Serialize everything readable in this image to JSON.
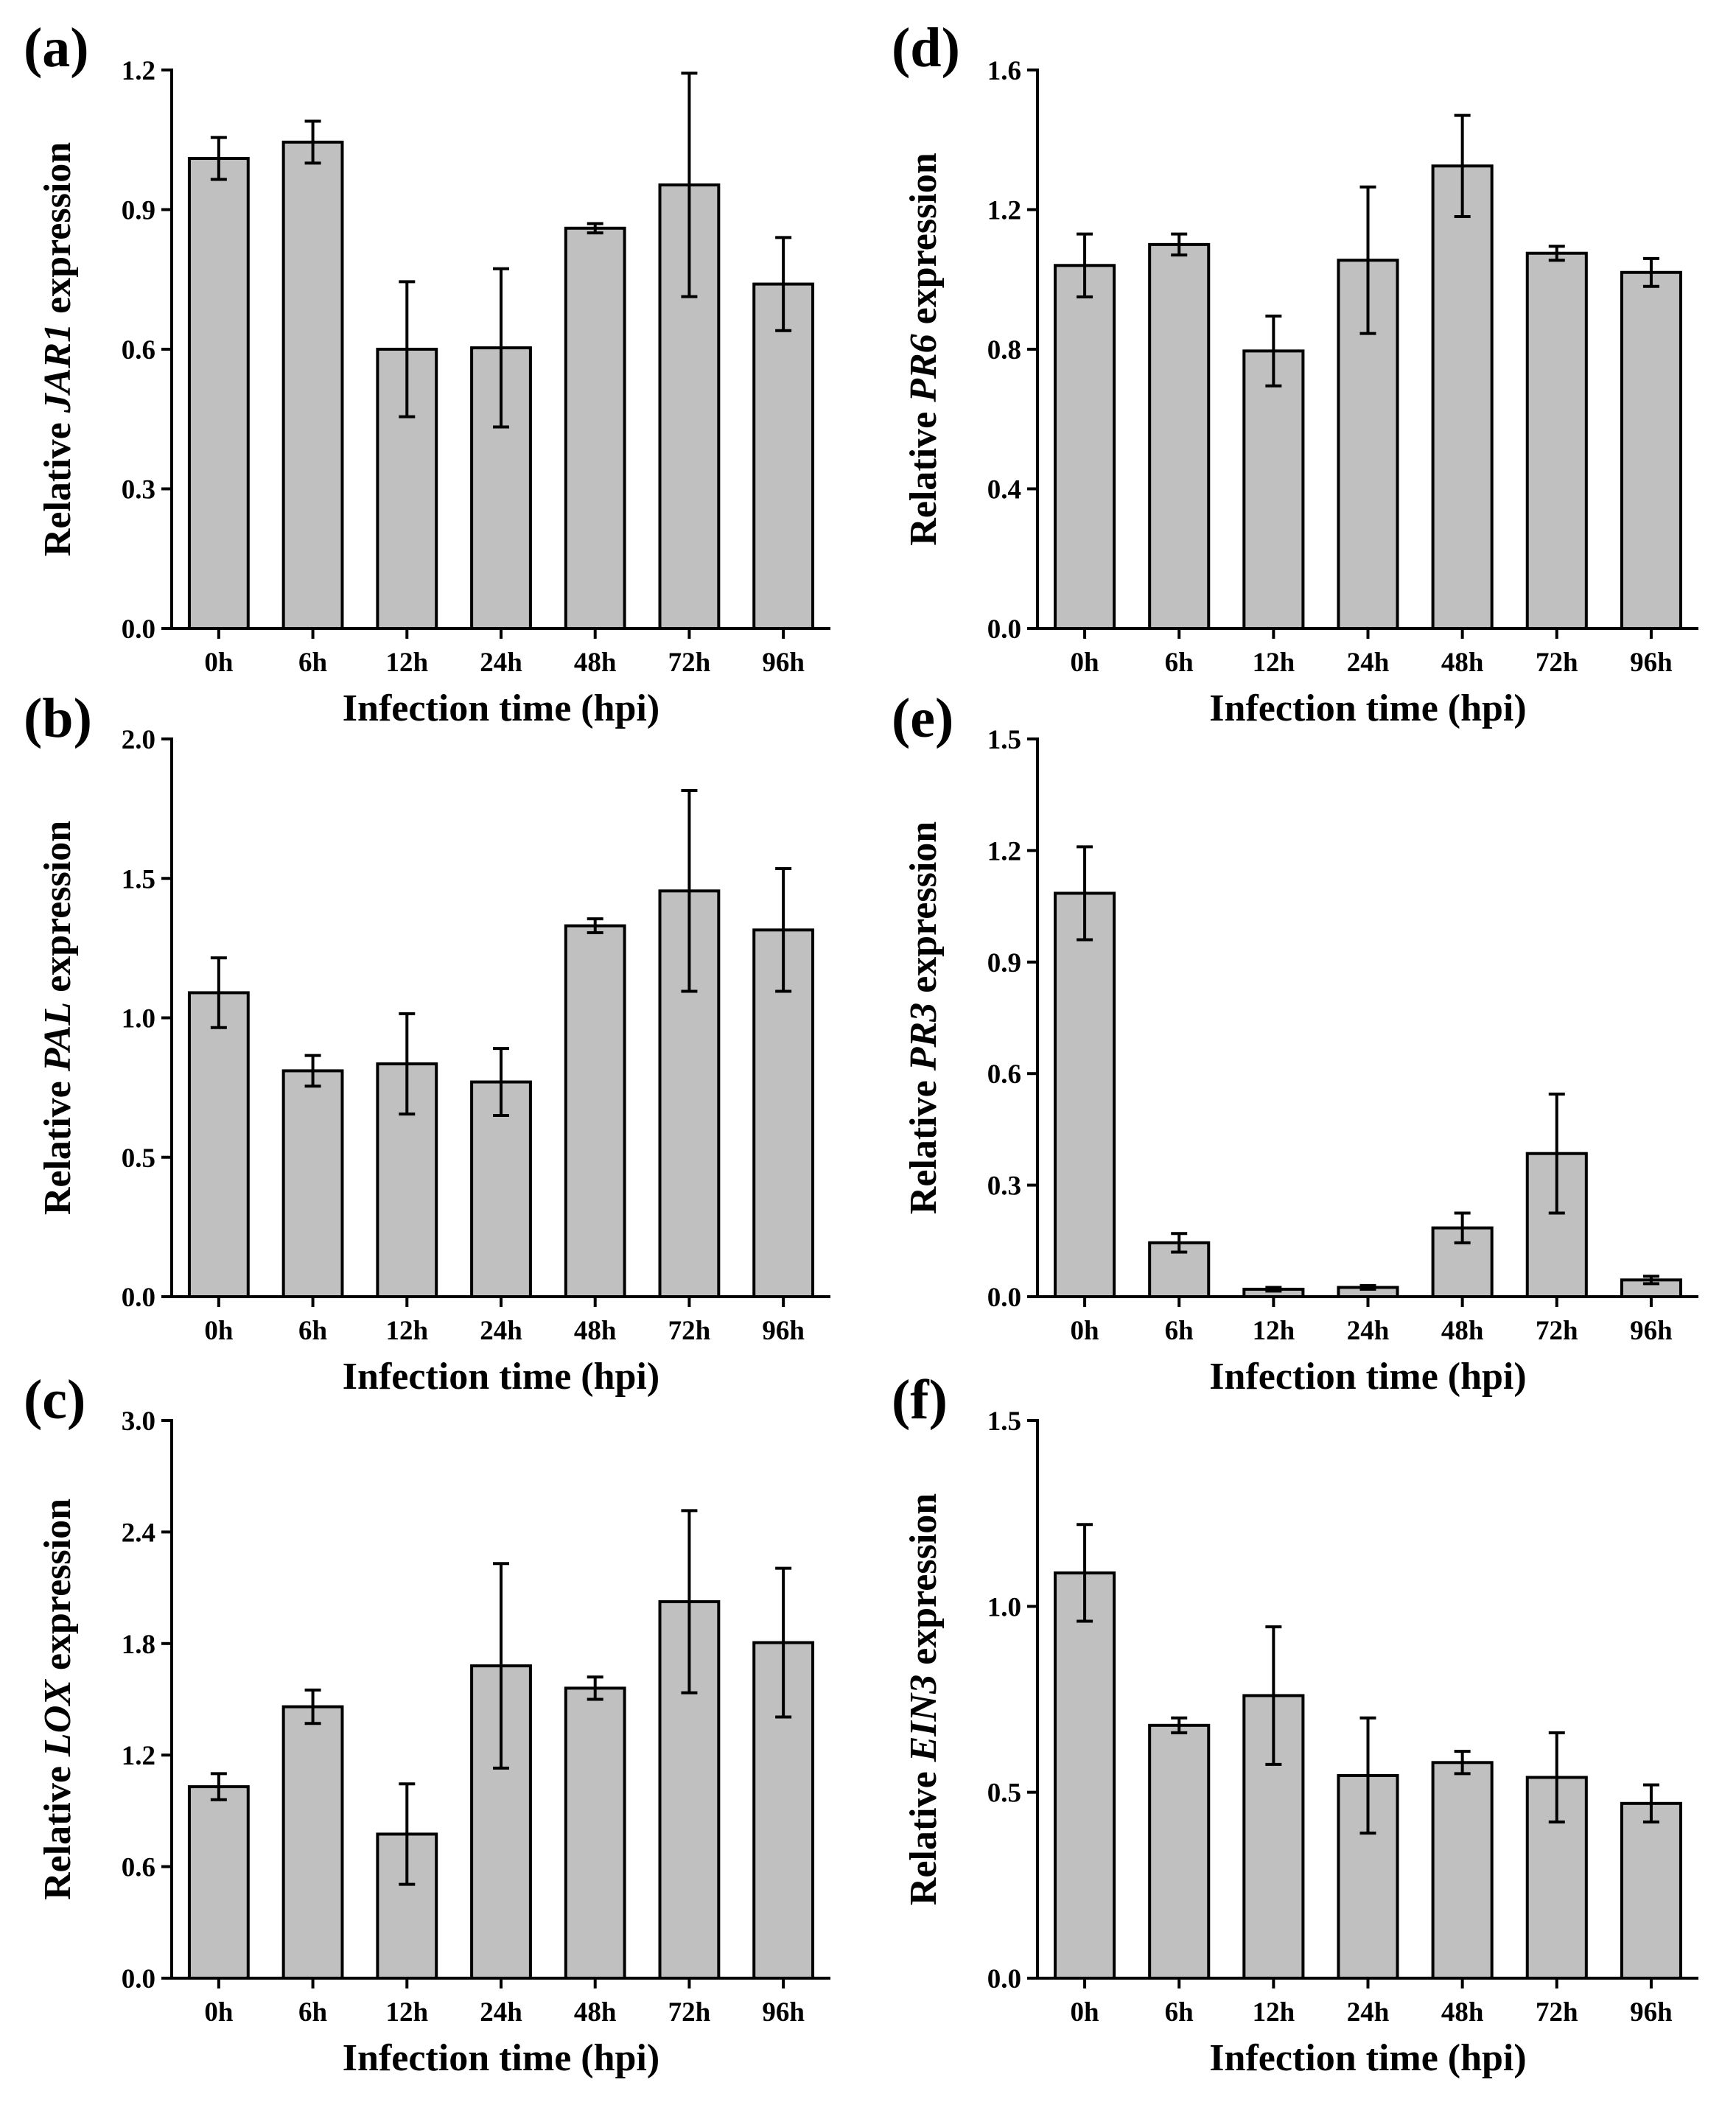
{
  "colors": {
    "bar_fill": "#c0c0c0",
    "stroke": "#000000",
    "background": "#ffffff"
  },
  "chart_data": [
    {
      "panel": "(a)",
      "type": "bar",
      "categories": [
        "0h",
        "6h",
        "12h",
        "24h",
        "48h",
        "72h",
        "96h"
      ],
      "values": [
        1.01,
        1.045,
        0.6,
        0.603,
        0.86,
        0.953,
        0.74
      ],
      "errors": [
        0.045,
        0.045,
        0.145,
        0.17,
        0.01,
        0.24,
        0.1
      ],
      "ylim": [
        0,
        1.2
      ],
      "yticks": [
        "0.0",
        "0.3",
        "0.6",
        "0.9",
        "1.2"
      ],
      "xlabel": "Infection time (hpi)",
      "ylabel": {
        "prefix": "Relative ",
        "gene": "JAR1",
        "suffix": " expression"
      }
    },
    {
      "panel": "(b)",
      "type": "bar",
      "categories": [
        "0h",
        "6h",
        "12h",
        "24h",
        "48h",
        "72h",
        "96h"
      ],
      "values": [
        1.09,
        0.81,
        0.835,
        0.77,
        1.33,
        1.455,
        1.315
      ],
      "errors": [
        0.125,
        0.055,
        0.18,
        0.12,
        0.025,
        0.36,
        0.22
      ],
      "ylim": [
        0,
        2.0
      ],
      "yticks": [
        "0.0",
        "0.5",
        "1.0",
        "1.5",
        "2.0"
      ],
      "xlabel": "Infection time (hpi)",
      "ylabel": {
        "prefix": "Relative ",
        "gene": "PAL",
        "suffix": " expression"
      }
    },
    {
      "panel": "(c)",
      "type": "bar",
      "categories": [
        "0h",
        "6h",
        "12h",
        "24h",
        "48h",
        "72h",
        "96h"
      ],
      "values": [
        1.03,
        1.46,
        0.775,
        1.68,
        1.56,
        2.025,
        1.805
      ],
      "errors": [
        0.07,
        0.09,
        0.27,
        0.55,
        0.06,
        0.49,
        0.4
      ],
      "ylim": [
        0,
        3.0
      ],
      "yticks": [
        "0.0",
        "0.6",
        "1.2",
        "1.8",
        "2.4",
        "3.0"
      ],
      "xlabel": "Infection time (hpi)",
      "ylabel": {
        "prefix": "Relative ",
        "gene": "LOX",
        "suffix": " expression"
      }
    },
    {
      "panel": "(d)",
      "type": "bar",
      "categories": [
        "0h",
        "6h",
        "12h",
        "24h",
        "48h",
        "72h",
        "96h"
      ],
      "values": [
        1.04,
        1.1,
        0.795,
        1.055,
        1.325,
        1.075,
        1.02
      ],
      "errors": [
        0.09,
        0.03,
        0.1,
        0.21,
        0.145,
        0.02,
        0.04
      ],
      "ylim": [
        0,
        1.6
      ],
      "yticks": [
        "0.0",
        "0.4",
        "0.8",
        "1.2",
        "1.6"
      ],
      "xlabel": "Infection time (hpi)",
      "ylabel": {
        "prefix": "Relative ",
        "gene": "PR6",
        "suffix": " expression"
      }
    },
    {
      "panel": "(e)",
      "type": "bar",
      "categories": [
        "0h",
        "6h",
        "12h",
        "24h",
        "48h",
        "72h",
        "96h"
      ],
      "values": [
        1.085,
        0.145,
        0.02,
        0.025,
        0.185,
        0.385,
        0.045
      ],
      "errors": [
        0.125,
        0.025,
        0.005,
        0.005,
        0.04,
        0.16,
        0.01
      ],
      "ylim": [
        0,
        1.5
      ],
      "yticks": [
        "0.0",
        "0.3",
        "0.6",
        "0.9",
        "1.2",
        "1.5"
      ],
      "xlabel": "Infection time (hpi)",
      "ylabel": {
        "prefix": "Relative ",
        "gene": "PR3",
        "suffix": " expression"
      }
    },
    {
      "panel": "(f)",
      "type": "bar",
      "categories": [
        "0h",
        "6h",
        "12h",
        "24h",
        "48h",
        "72h",
        "96h"
      ],
      "values": [
        1.09,
        0.68,
        0.76,
        0.545,
        0.58,
        0.54,
        0.47
      ],
      "errors": [
        0.13,
        0.02,
        0.185,
        0.155,
        0.03,
        0.12,
        0.05
      ],
      "ylim": [
        0,
        1.5
      ],
      "yticks": [
        "0.0",
        "0.5",
        "1.0",
        "1.5"
      ],
      "xlabel": "Infection time (hpi)",
      "ylabel": {
        "prefix": "Relative ",
        "gene": "EIN3",
        "suffix": " expression"
      }
    }
  ]
}
